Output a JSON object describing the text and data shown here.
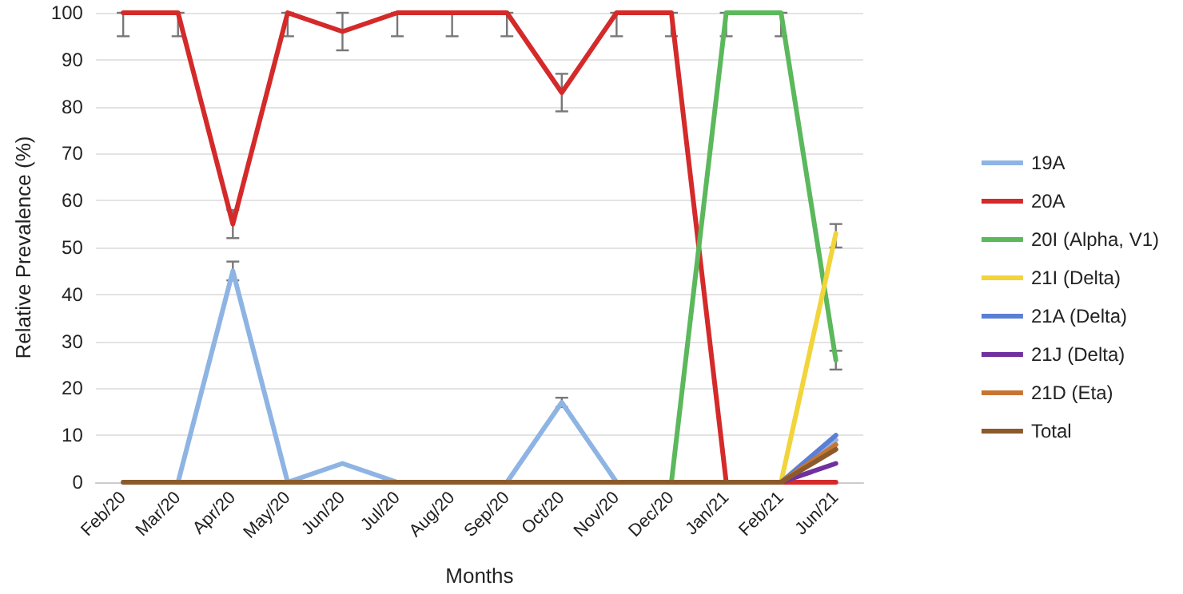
{
  "chart_data": {
    "type": "line",
    "xlabel": "Months",
    "ylabel": "Relative Prevalence (%)",
    "categories": [
      "Feb/20",
      "Mar/20",
      "Apr/20",
      "May/20",
      "Jun/20",
      "Jul/20",
      "Aug/20",
      "Sep/20",
      "Oct/20",
      "Nov/20",
      "Dec/20",
      "Jan/21",
      "Feb/21",
      "Jun/21"
    ],
    "ylim": [
      0,
      100
    ],
    "yticks": [
      0,
      10,
      20,
      30,
      40,
      50,
      60,
      70,
      80,
      90,
      100
    ],
    "grid": "y",
    "legend": "right",
    "marker": "none",
    "line_style": "solid",
    "series": [
      {
        "name": "19A",
        "color": "#8eb4e3",
        "values": [
          0,
          0,
          45,
          0,
          4,
          0,
          0,
          0,
          17,
          0,
          0,
          0,
          0,
          9
        ],
        "errors": [
          null,
          null,
          [
            43,
            47
          ],
          null,
          null,
          null,
          null,
          null,
          [
            16,
            18
          ],
          null,
          null,
          null,
          null,
          null
        ]
      },
      {
        "name": "20A",
        "color": "#d42a2a",
        "values": [
          100,
          100,
          55,
          100,
          96,
          100,
          100,
          100,
          83,
          100,
          100,
          0,
          0,
          0
        ],
        "errors": [
          [
            95,
            100
          ],
          [
            95,
            100
          ],
          [
            52,
            58
          ],
          [
            95,
            100
          ],
          [
            92,
            100
          ],
          [
            95,
            100
          ],
          [
            95,
            100
          ],
          [
            95,
            100
          ],
          [
            79,
            87
          ],
          [
            95,
            100
          ],
          [
            95,
            100
          ],
          null,
          null,
          null
        ]
      },
      {
        "name": "20I (Alpha, V1)",
        "color": "#5cb85c",
        "values": [
          null,
          null,
          null,
          null,
          null,
          null,
          null,
          null,
          null,
          null,
          0,
          100,
          100,
          26
        ],
        "errors": [
          null,
          null,
          null,
          null,
          null,
          null,
          null,
          null,
          null,
          null,
          null,
          [
            95,
            100
          ],
          [
            95,
            100
          ],
          [
            24,
            28
          ]
        ]
      },
      {
        "name": "21I (Delta)",
        "color": "#f2d43b",
        "values": [
          null,
          null,
          null,
          null,
          null,
          null,
          null,
          null,
          null,
          null,
          null,
          null,
          0,
          53
        ],
        "errors": [
          null,
          null,
          null,
          null,
          null,
          null,
          null,
          null,
          null,
          null,
          null,
          null,
          null,
          [
            50,
            55
          ]
        ]
      },
      {
        "name": "21A (Delta)",
        "color": "#5b7fd6",
        "values": [
          null,
          null,
          null,
          null,
          null,
          null,
          null,
          null,
          null,
          null,
          null,
          null,
          0,
          10
        ]
      },
      {
        "name": "21J (Delta)",
        "color": "#7030a0",
        "values": [
          null,
          null,
          null,
          null,
          null,
          null,
          null,
          null,
          null,
          null,
          null,
          null,
          0,
          4
        ]
      },
      {
        "name": "21D (Eta)",
        "color": "#c87533",
        "values": [
          null,
          null,
          null,
          null,
          null,
          null,
          null,
          null,
          null,
          null,
          null,
          null,
          0,
          8
        ]
      },
      {
        "name": "Total",
        "color": "#8b5a2b",
        "values": [
          0,
          0,
          0,
          0,
          0,
          0,
          0,
          0,
          0,
          0,
          0,
          0,
          0,
          7
        ]
      }
    ]
  }
}
